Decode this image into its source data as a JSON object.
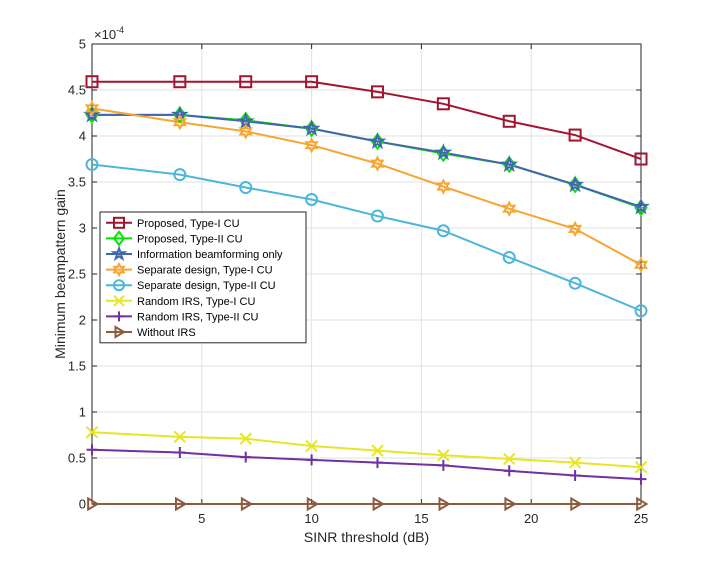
{
  "chart_data": {
    "type": "line",
    "title": "",
    "xlabel": "SINR threshold (dB)",
    "ylabel": "Minimum beampattern gain",
    "exponent_label": "×10",
    "exponent_power": "-4",
    "xlim": [
      0,
      25
    ],
    "ylim": [
      0,
      5
    ],
    "xticks": [
      5,
      10,
      15,
      20,
      25
    ],
    "yticks": [
      0,
      0.5,
      1,
      1.5,
      2,
      2.5,
      3,
      3.5,
      4,
      4.5,
      5
    ],
    "ytick_labels": [
      "0",
      "0.5",
      "1",
      "1.5",
      "2",
      "2.5",
      "3",
      "3.5",
      "4",
      "4.5",
      "5"
    ],
    "grid": true,
    "legend_position": "center-left",
    "x": [
      0,
      4,
      7,
      10,
      13,
      16,
      19,
      22,
      25
    ],
    "series": [
      {
        "name": "Proposed, Type-I CU",
        "color": "#a2142f",
        "marker": "square",
        "values": [
          4.59,
          4.59,
          4.59,
          4.59,
          4.48,
          4.35,
          4.16,
          4.01,
          3.75
        ]
      },
      {
        "name": "Proposed, Type-II CU",
        "color": "#00e600",
        "marker": "diamond",
        "values": [
          4.23,
          4.23,
          4.17,
          4.08,
          3.94,
          3.81,
          3.69,
          3.47,
          3.22
        ]
      },
      {
        "name": "Information beamforming only",
        "color": "#4266ad",
        "marker": "star",
        "values": [
          4.23,
          4.23,
          4.16,
          4.08,
          3.94,
          3.82,
          3.69,
          3.47,
          3.23
        ]
      },
      {
        "name": "Separate design, Type-I CU",
        "color": "#f7a531",
        "marker": "hexagram",
        "values": [
          4.3,
          4.15,
          4.05,
          3.9,
          3.7,
          3.45,
          3.21,
          2.99,
          2.6
        ]
      },
      {
        "name": "Separate design, Type-II CU",
        "color": "#4db6d9",
        "marker": "circle",
        "values": [
          3.69,
          3.58,
          3.44,
          3.31,
          3.13,
          2.97,
          2.68,
          2.4,
          2.1
        ]
      },
      {
        "name": "Random IRS, Type-I CU",
        "color": "#e7e527",
        "marker": "x",
        "values": [
          0.78,
          0.73,
          0.71,
          0.63,
          0.58,
          0.53,
          0.49,
          0.45,
          0.4
        ]
      },
      {
        "name": "Random IRS, Type-II CU",
        "color": "#7030a0",
        "marker": "plus",
        "values": [
          0.59,
          0.56,
          0.51,
          0.48,
          0.45,
          0.42,
          0.36,
          0.31,
          0.27
        ]
      },
      {
        "name": "Without IRS",
        "color": "#8c5a3c",
        "marker": "triangle-right",
        "values": [
          0,
          0,
          0,
          0,
          0,
          0,
          0,
          0,
          0
        ]
      }
    ]
  }
}
